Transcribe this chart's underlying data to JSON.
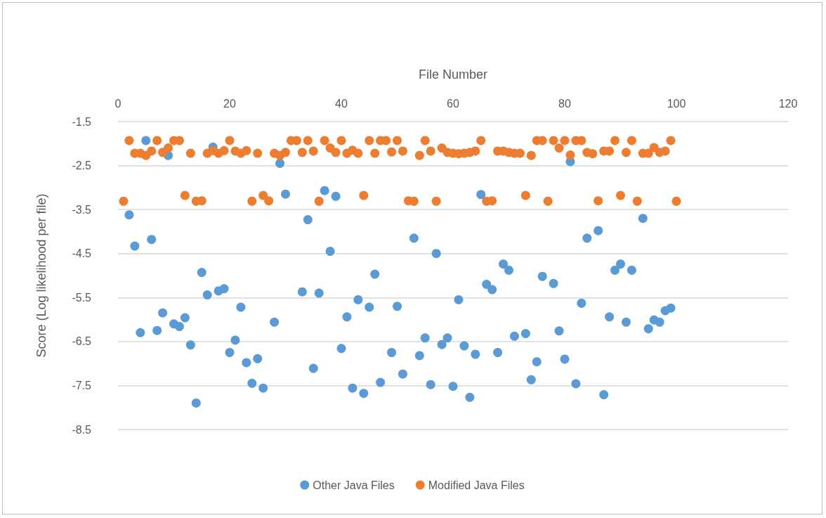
{
  "chart_data": {
    "type": "scatter",
    "xlabel": "File Number",
    "ylabel": "Score (Log likelihood per file)",
    "x": [
      1,
      2,
      3,
      4,
      5,
      6,
      7,
      8,
      9,
      10,
      11,
      12,
      13,
      14,
      15,
      16,
      17,
      18,
      19,
      20,
      21,
      22,
      23,
      24,
      25,
      26,
      27,
      28,
      29,
      30,
      31,
      32,
      33,
      34,
      35,
      36,
      37,
      38,
      39,
      40,
      41,
      42,
      43,
      44,
      45,
      46,
      47,
      48,
      49,
      50,
      51,
      52,
      53,
      54,
      55,
      56,
      57,
      58,
      59,
      60,
      61,
      62,
      63,
      64,
      65,
      66,
      67,
      68,
      69,
      70,
      71,
      72,
      73,
      74,
      75,
      76,
      77,
      78,
      79,
      80,
      81,
      82,
      83,
      84,
      85,
      86,
      87,
      88,
      89,
      90,
      91,
      92,
      93,
      94,
      95,
      96,
      97,
      98,
      99,
      100
    ],
    "series": [
      {
        "name": "Other Java Files",
        "color": "#5b9bd5",
        "values": [
          null,
          -3.62,
          -4.33,
          -6.3,
          -1.93,
          -4.18,
          -6.25,
          -5.85,
          -2.27,
          -6.1,
          -6.16,
          -5.96,
          -6.58,
          -7.9,
          -4.93,
          -5.44,
          -2.08,
          -5.35,
          -5.3,
          -6.75,
          -6.47,
          -5.72,
          -6.98,
          -7.45,
          -6.89,
          -7.56,
          null,
          -6.06,
          -2.45,
          -3.15,
          null,
          null,
          -5.37,
          -3.73,
          -7.11,
          -5.4,
          -3.07,
          -4.45,
          -3.2,
          -6.66,
          -5.94,
          -7.56,
          -5.55,
          -7.68,
          -5.72,
          -4.97,
          -7.43,
          null,
          -6.75,
          -5.7,
          -7.24,
          null,
          -4.15,
          -6.82,
          -6.42,
          -7.48,
          -4.5,
          -6.57,
          -6.42,
          -7.52,
          -5.55,
          -6.6,
          -7.77,
          -6.79,
          -3.16,
          -5.2,
          -5.32,
          -6.75,
          -4.74,
          -4.88,
          -6.38,
          null,
          -6.32,
          -7.37,
          -6.96,
          -5.02,
          null,
          -5.18,
          -6.26,
          -6.9,
          -2.41,
          -7.46,
          -5.63,
          -4.15,
          null,
          -3.98,
          -7.71,
          -5.94,
          -4.88,
          -4.74,
          -6.06,
          -4.88,
          null,
          -3.7,
          -6.21,
          -6.01,
          -6.06,
          -5.8,
          -5.74,
          null
        ]
      },
      {
        "name": "Modified Java Files",
        "color": "#ed7d31",
        "values": [
          -3.31,
          -1.93,
          -2.22,
          -2.22,
          -2.27,
          -2.17,
          -1.93,
          -2.2,
          -2.1,
          -1.93,
          -1.93,
          -3.18,
          -2.22,
          -3.31,
          -3.3,
          -2.22,
          -2.16,
          -2.22,
          -2.16,
          -1.93,
          -2.17,
          -2.22,
          -2.16,
          -3.31,
          -2.22,
          -3.18,
          -3.3,
          -2.22,
          -2.27,
          -2.2,
          -1.93,
          -1.93,
          -2.2,
          -1.93,
          -2.17,
          -3.31,
          -1.93,
          -2.1,
          -2.2,
          -1.93,
          -2.22,
          -2.15,
          -2.22,
          -3.18,
          -1.93,
          -2.22,
          -1.93,
          -1.93,
          -2.19,
          -1.93,
          -2.17,
          -3.3,
          -3.31,
          -2.27,
          -1.93,
          -2.17,
          -3.31,
          -2.1,
          -2.2,
          -2.22,
          -2.23,
          -2.22,
          -2.2,
          -2.17,
          -1.93,
          -3.31,
          -3.3,
          -2.17,
          -2.17,
          -2.2,
          -2.22,
          -2.22,
          -3.18,
          -2.27,
          -1.93,
          -1.93,
          -3.31,
          -1.93,
          -2.1,
          -1.93,
          -2.26,
          -1.93,
          -1.93,
          -2.2,
          -2.23,
          -3.3,
          -2.17,
          -2.17,
          -1.93,
          -3.18,
          -2.2,
          -1.93,
          -3.31,
          -2.22,
          -2.22,
          -2.09,
          -2.2,
          -2.17,
          -1.93,
          -3.31
        ]
      }
    ],
    "xlim": [
      0,
      120
    ],
    "xticks": [
      0,
      20,
      40,
      60,
      80,
      100,
      120
    ],
    "ylim": [
      -8.5,
      -1.5
    ],
    "yticks": [
      -1.5,
      -2.5,
      -3.5,
      -4.5,
      -5.5,
      -6.5,
      -7.5,
      -8.5
    ],
    "grid": "y",
    "legend": "bottom",
    "marker": "circle"
  }
}
